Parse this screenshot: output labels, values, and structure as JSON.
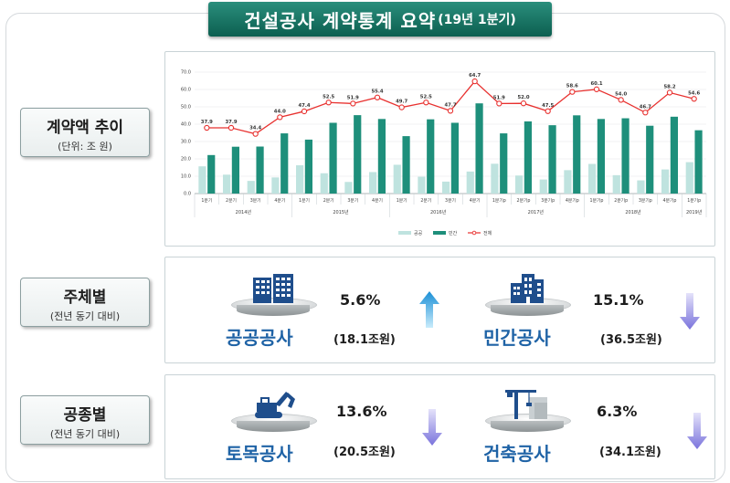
{
  "title": {
    "main": "건설공사 계약통계 요약",
    "sub": "(19년 1분기)"
  },
  "rows": [
    {
      "title": "계약액 추이",
      "subtitle": "(단위: 조 원)"
    },
    {
      "title": "주체별",
      "subtitle": "(전년 동기 대비)"
    },
    {
      "title": "공종별",
      "subtitle": "(전년 동기 대비)"
    }
  ],
  "owner": {
    "public": {
      "name": "공공공사",
      "pct": "5.6%",
      "amount": "(18.1조원)",
      "trend": "up",
      "icon": "office-buildings-icon"
    },
    "private": {
      "name": "민간공사",
      "pct": "15.1%",
      "amount": "(36.5조원)",
      "trend": "down",
      "icon": "buildings-icon"
    }
  },
  "work": {
    "civil": {
      "name": "토목공사",
      "pct": "13.6%",
      "amount": "(20.5조원)",
      "trend": "down",
      "icon": "excavator-icon"
    },
    "building": {
      "name": "건축공사",
      "pct": "6.3%",
      "amount": "(34.1조원)",
      "trend": "down",
      "icon": "crane-building-icon"
    }
  },
  "colors": {
    "public": "#bfe3df",
    "private": "#1e8f7b",
    "total": "#e8312f",
    "up": "#2ba0e0",
    "down": "#8a84e0",
    "title_green": "#0f6b5a",
    "name_blue": "#1f63a6"
  },
  "chart_data": {
    "type": "bar+line",
    "categories": [
      "1분기",
      "2분기",
      "3분기",
      "4분기",
      "1분기",
      "2분기",
      "3분기",
      "4분기",
      "1분기",
      "2분기",
      "3분기",
      "4분기",
      "1분기p",
      "2분기p",
      "3분기p",
      "4분기p",
      "1분기p",
      "2분기p",
      "3분기p",
      "4분기p",
      "1분기p"
    ],
    "year_groups": [
      {
        "label": "2014년",
        "count": 4
      },
      {
        "label": "2015년",
        "count": 4
      },
      {
        "label": "2016년",
        "count": 4
      },
      {
        "label": "2017년",
        "count": 4
      },
      {
        "label": "2018년",
        "count": 4
      },
      {
        "label": "2019년",
        "count": 1
      }
    ],
    "y_ticks": [
      "0.0",
      "10.0",
      "20.0",
      "30.0",
      "40.0",
      "50.0",
      "60.0",
      "70.0"
    ],
    "ylim": [
      0,
      70
    ],
    "series": [
      {
        "name": "공공",
        "kind": "bar",
        "values": [
          15.7,
          10.9,
          7.3,
          9.3,
          16.3,
          11.7,
          6.7,
          12.4,
          16.6,
          9.7,
          6.9,
          12.7,
          17.2,
          10.4,
          8.1,
          13.5,
          17.1,
          10.6,
          7.6,
          13.9,
          18.1
        ]
      },
      {
        "name": "민간",
        "kind": "bar",
        "values": [
          22.2,
          27.0,
          27.1,
          34.7,
          31.1,
          40.8,
          45.2,
          43.0,
          33.1,
          42.8,
          40.8,
          52.0,
          34.7,
          41.6,
          39.4,
          45.1,
          43.0,
          43.4,
          39.1,
          44.3,
          36.5
        ]
      },
      {
        "name": "전체",
        "kind": "line",
        "values": [
          37.9,
          37.9,
          34.4,
          44.0,
          47.4,
          52.5,
          51.9,
          55.4,
          49.7,
          52.5,
          47.7,
          64.7,
          51.9,
          52.0,
          47.5,
          58.6,
          60.1,
          54.0,
          46.7,
          58.2,
          54.6
        ],
        "labels": [
          "37.9",
          "37.9",
          "34.4",
          "44.0",
          "47.4",
          "52.5",
          "51.9",
          "55.4",
          "49.7",
          "52.5",
          "47.7",
          "64.7",
          "51.9",
          "52.0",
          "47.5",
          "58.6",
          "60.1",
          "54.0",
          "46.7",
          "58.2",
          "54.6"
        ]
      }
    ],
    "legend": [
      "공공",
      "민간",
      "전체"
    ],
    "legend_position": "bottom"
  }
}
